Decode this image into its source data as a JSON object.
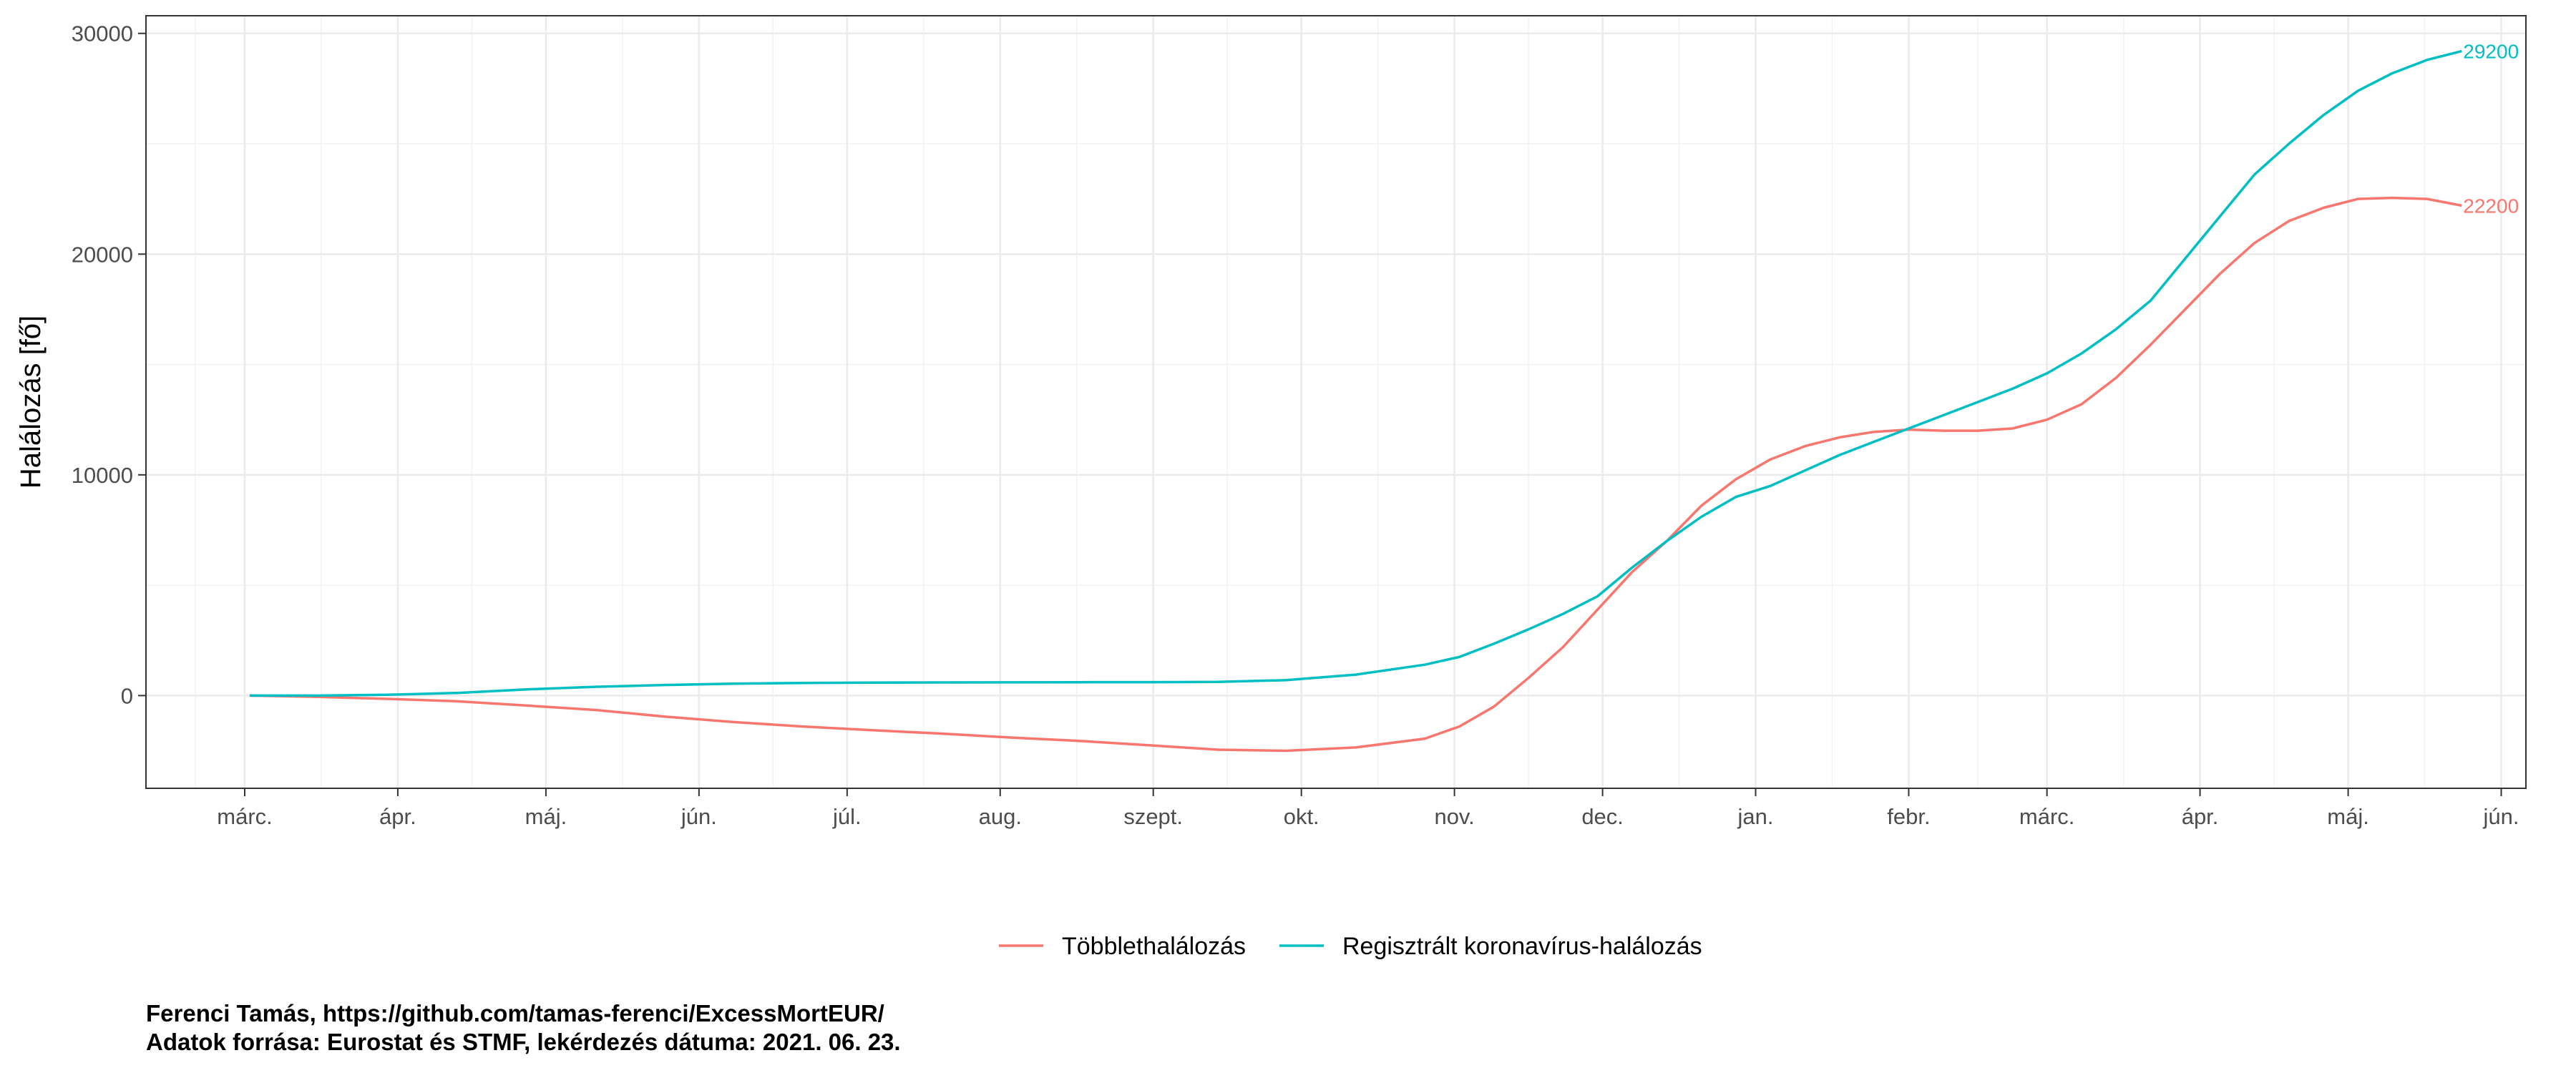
{
  "chart_data": {
    "type": "line",
    "ylabel": "Halálozás [fő]",
    "ylim": [
      -4200,
      30800
    ],
    "y_ticks": [
      0,
      10000,
      20000,
      30000
    ],
    "x_ticks": [
      {
        "label": "márc.",
        "date": "2020-03-01"
      },
      {
        "label": "ápr.",
        "date": "2020-04-01"
      },
      {
        "label": "máj.",
        "date": "2020-05-01"
      },
      {
        "label": "jún.",
        "date": "2020-06-01"
      },
      {
        "label": "júl.",
        "date": "2020-07-01"
      },
      {
        "label": "aug.",
        "date": "2020-08-01"
      },
      {
        "label": "szept.",
        "date": "2020-09-01"
      },
      {
        "label": "okt.",
        "date": "2020-10-01"
      },
      {
        "label": "nov.",
        "date": "2020-11-01"
      },
      {
        "label": "dec.",
        "date": "2020-12-01"
      },
      {
        "label": "jan.",
        "date": "2021-01-01"
      },
      {
        "label": "febr.",
        "date": "2021-02-01"
      },
      {
        "label": "márc.",
        "date": "2021-03-01"
      },
      {
        "label": "ápr.",
        "date": "2021-04-01"
      },
      {
        "label": "máj.",
        "date": "2021-05-01"
      },
      {
        "label": "jún.",
        "date": "2021-06-01"
      }
    ],
    "xlim": [
      "2020-02-10",
      "2021-06-06"
    ],
    "grid": true,
    "legend_position": "bottom",
    "series": [
      {
        "name": "Többlethalálozás",
        "color": "#F8766D",
        "end_label": "22200",
        "points": [
          [
            "2020-03-02",
            0
          ],
          [
            "2020-03-16",
            -60
          ],
          [
            "2020-03-30",
            -150
          ],
          [
            "2020-04-13",
            -260
          ],
          [
            "2020-04-27",
            -450
          ],
          [
            "2020-05-11",
            -650
          ],
          [
            "2020-05-25",
            -950
          ],
          [
            "2020-06-08",
            -1200
          ],
          [
            "2020-06-22",
            -1400
          ],
          [
            "2020-07-06",
            -1570
          ],
          [
            "2020-07-20",
            -1720
          ],
          [
            "2020-08-03",
            -1900
          ],
          [
            "2020-08-17",
            -2050
          ],
          [
            "2020-08-31",
            -2250
          ],
          [
            "2020-09-14",
            -2450
          ],
          [
            "2020-09-28",
            -2500
          ],
          [
            "2020-10-12",
            -2350
          ],
          [
            "2020-10-26",
            -1950
          ],
          [
            "2020-11-02",
            -1400
          ],
          [
            "2020-11-09",
            -500
          ],
          [
            "2020-11-16",
            800
          ],
          [
            "2020-11-23",
            2200
          ],
          [
            "2020-11-30",
            3900
          ],
          [
            "2020-12-07",
            5600
          ],
          [
            "2020-12-14",
            7000
          ],
          [
            "2020-12-21",
            8600
          ],
          [
            "2020-12-28",
            9800
          ],
          [
            "2021-01-04",
            10700
          ],
          [
            "2021-01-11",
            11300
          ],
          [
            "2021-01-18",
            11700
          ],
          [
            "2021-01-25",
            11950
          ],
          [
            "2021-02-01",
            12050
          ],
          [
            "2021-02-08",
            12000
          ],
          [
            "2021-02-15",
            12000
          ],
          [
            "2021-02-22",
            12100
          ],
          [
            "2021-03-01",
            12500
          ],
          [
            "2021-03-08",
            13200
          ],
          [
            "2021-03-15",
            14400
          ],
          [
            "2021-03-22",
            15900
          ],
          [
            "2021-03-29",
            17500
          ],
          [
            "2021-04-05",
            19100
          ],
          [
            "2021-04-12",
            20500
          ],
          [
            "2021-04-19",
            21500
          ],
          [
            "2021-04-26",
            22100
          ],
          [
            "2021-05-03",
            22500
          ],
          [
            "2021-05-10",
            22550
          ],
          [
            "2021-05-17",
            22500
          ],
          [
            "2021-05-24",
            22200
          ]
        ]
      },
      {
        "name": "Regisztrált koronavírus-halálozás",
        "color": "#00BFC4",
        "end_label": "29200",
        "points": [
          [
            "2020-03-02",
            0
          ],
          [
            "2020-03-16",
            0
          ],
          [
            "2020-03-30",
            40
          ],
          [
            "2020-04-13",
            120
          ],
          [
            "2020-04-27",
            280
          ],
          [
            "2020-05-11",
            400
          ],
          [
            "2020-05-25",
            480
          ],
          [
            "2020-06-08",
            540
          ],
          [
            "2020-06-22",
            570
          ],
          [
            "2020-07-06",
            590
          ],
          [
            "2020-07-20",
            595
          ],
          [
            "2020-08-03",
            600
          ],
          [
            "2020-08-17",
            605
          ],
          [
            "2020-08-31",
            610
          ],
          [
            "2020-09-14",
            620
          ],
          [
            "2020-09-28",
            700
          ],
          [
            "2020-10-12",
            950
          ],
          [
            "2020-10-26",
            1400
          ],
          [
            "2020-11-02",
            1750
          ],
          [
            "2020-11-09",
            2350
          ],
          [
            "2020-11-16",
            3000
          ],
          [
            "2020-11-23",
            3700
          ],
          [
            "2020-11-30",
            4500
          ],
          [
            "2020-12-07",
            5800
          ],
          [
            "2020-12-14",
            7000
          ],
          [
            "2020-12-21",
            8100
          ],
          [
            "2020-12-28",
            9000
          ],
          [
            "2021-01-04",
            9500
          ],
          [
            "2021-01-11",
            10200
          ],
          [
            "2021-01-18",
            10900
          ],
          [
            "2021-01-25",
            11500
          ],
          [
            "2021-02-01",
            12100
          ],
          [
            "2021-02-08",
            12700
          ],
          [
            "2021-02-15",
            13300
          ],
          [
            "2021-02-22",
            13900
          ],
          [
            "2021-03-01",
            14600
          ],
          [
            "2021-03-08",
            15500
          ],
          [
            "2021-03-15",
            16600
          ],
          [
            "2021-03-22",
            17900
          ],
          [
            "2021-03-29",
            19800
          ],
          [
            "2021-04-05",
            21700
          ],
          [
            "2021-04-12",
            23600
          ],
          [
            "2021-04-19",
            25000
          ],
          [
            "2021-04-26",
            26300
          ],
          [
            "2021-05-03",
            27400
          ],
          [
            "2021-05-10",
            28200
          ],
          [
            "2021-05-17",
            28800
          ],
          [
            "2021-05-24",
            29200
          ]
        ]
      }
    ]
  },
  "caption": {
    "line1": "Ferenci Tamás, https://github.com/tamas-ferenci/ExcessMortEUR/",
    "line2": "Adatok forrása: Eurostat és STMF, lekérdezés dátuma: 2021. 06. 23."
  }
}
